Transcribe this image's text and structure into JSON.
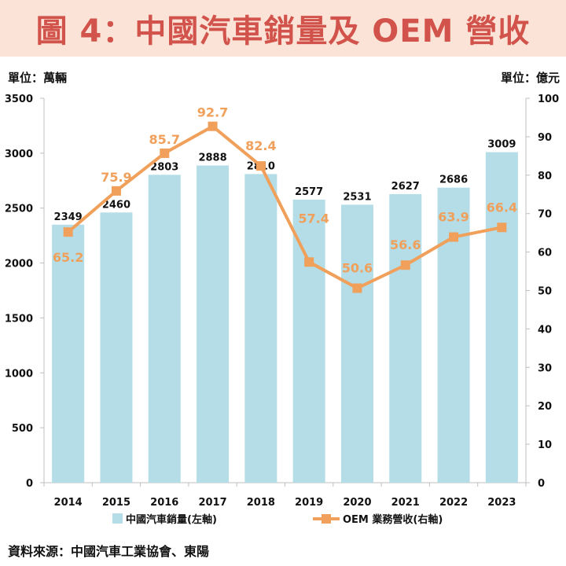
{
  "header": {
    "title": "圖 4：中國汽車銷量及 OEM 營收"
  },
  "units": {
    "left": "單位：萬輛",
    "right": "單位：億元"
  },
  "source": "資料來源：中國汽車工業協會、東陽",
  "colors": {
    "bar": "#b4dde7",
    "line": "#f0a05a",
    "title": "#d1534b",
    "title_band": "#fbe4d7"
  },
  "chart_data": {
    "type": "bar+line",
    "categories": [
      "2014",
      "2015",
      "2016",
      "2017",
      "2018",
      "2019",
      "2020",
      "2021",
      "2022",
      "2023"
    ],
    "series": [
      {
        "name": "中國汽車銷量(左軸)",
        "type": "bar",
        "axis": "left",
        "values": [
          2349,
          2460,
          2803,
          2888,
          2810,
          2577,
          2531,
          2627,
          2686,
          3009
        ]
      },
      {
        "name": "OEM 業務營收(右軸)",
        "type": "line",
        "axis": "right",
        "values": [
          65.2,
          75.9,
          85.7,
          92.7,
          82.4,
          57.4,
          50.6,
          56.6,
          63.9,
          66.4
        ]
      }
    ],
    "left_axis": {
      "min": 0,
      "max": 3500,
      "step": 500
    },
    "right_axis": {
      "min": 0,
      "max": 100,
      "step": 10
    },
    "legend_position": "bottom"
  }
}
